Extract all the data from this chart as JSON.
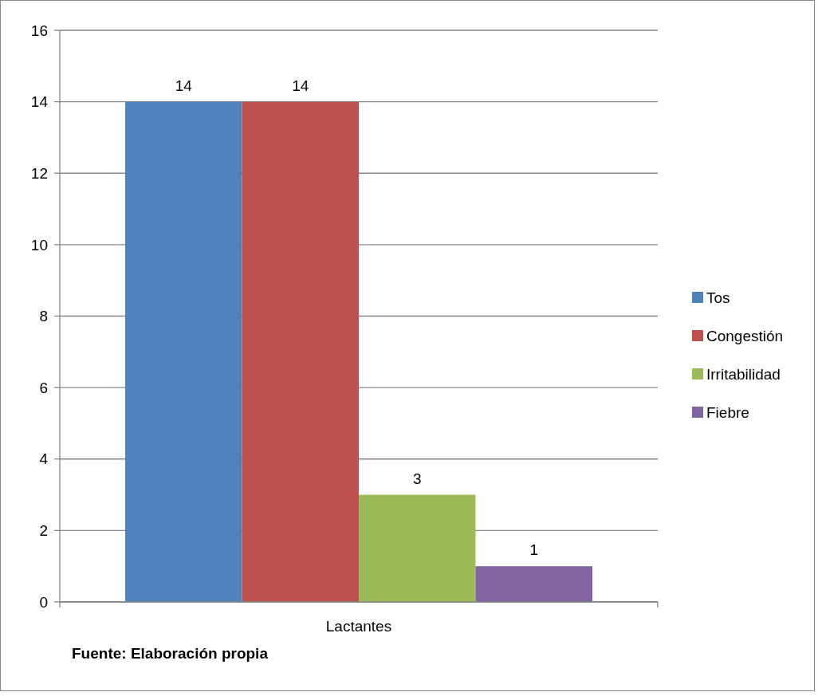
{
  "chart_data": {
    "type": "bar",
    "categories": [
      "Lactantes"
    ],
    "series": [
      {
        "name": "Tos",
        "color": "#4f81bd",
        "values": [
          14
        ]
      },
      {
        "name": "Congestión",
        "color": "#c0504d",
        "values": [
          14
        ]
      },
      {
        "name": "Irritabilidad",
        "color": "#9bbb59",
        "values": [
          3
        ]
      },
      {
        "name": "Fiebre",
        "color": "#8064a2",
        "values": [
          1
        ]
      }
    ],
    "ylim": [
      0,
      16
    ],
    "yticks": [
      0,
      2,
      4,
      6,
      8,
      10,
      12,
      14,
      16
    ],
    "grid": "y",
    "legend": "right",
    "data_labels": true,
    "annotations": [
      "Fuente: Elaboración propia"
    ]
  }
}
